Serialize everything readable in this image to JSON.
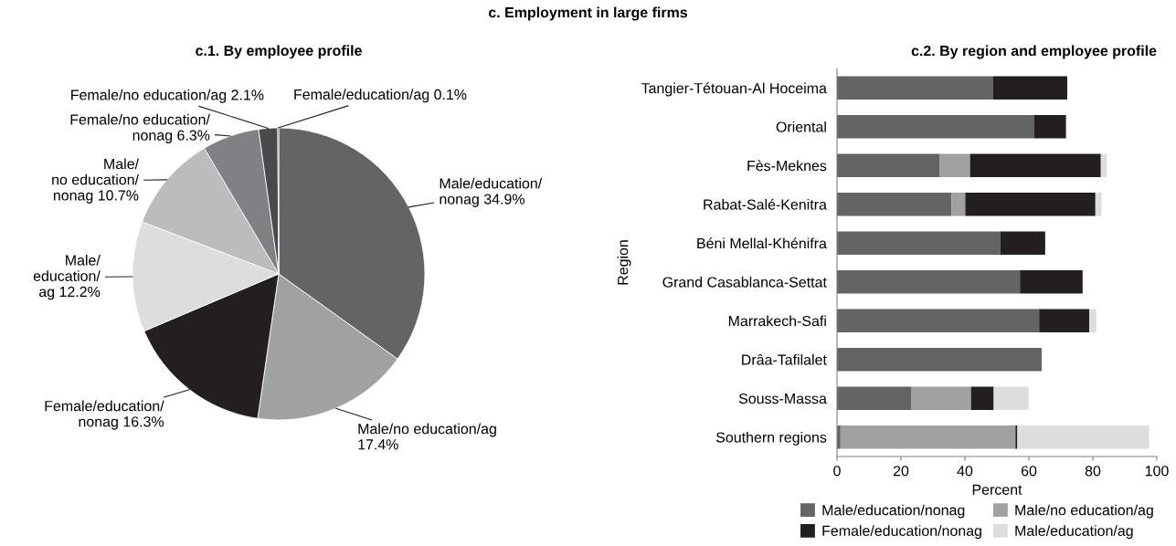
{
  "chart_data": [
    {
      "type": "pie",
      "title": "c.1. By employee profile",
      "annotations": [
        "c. Employment in large firms"
      ],
      "categories": [
        "Male/education/\nnonag 34.9%",
        "Male/no education/ag\n17.4%",
        "Female/education/\nnonag 16.3%",
        "Male/\neducation/\nag 12.2%",
        "Male/\nno education/\nnonag 10.7%",
        "Female/no education/\nnonag 6.3%",
        "Female/no education/ag 2.1%",
        "Female/education/ag 0.1%"
      ],
      "values": [
        34.9,
        17.4,
        16.3,
        12.2,
        10.7,
        6.3,
        2.1,
        0.1
      ],
      "colors": [
        "#636466",
        "#a0a1a3",
        "#231f20",
        "#dcdddf",
        "#bbbcbe",
        "#808184",
        "#4a4a4d",
        "#333333"
      ]
    },
    {
      "type": "bar",
      "orientation": "horizontal",
      "stacked": true,
      "title": "c.2. By region and employee profile",
      "xlabel": "Percent",
      "ylabel": "Region",
      "categories": [
        "Tangier-Tétouan-Al Hoceima",
        "Oriental",
        "Fès-Meknes",
        "Rabat-Salé-Kenitra",
        "Béni Mellal-Khénifra",
        "Grand Casablanca-Settat",
        "Marrakech-Safi",
        "Drâa-Tafilalet",
        "Souss-Massa",
        "Southern regions"
      ],
      "series": [
        {
          "name": "Male/education/nonag",
          "color": "#636466",
          "values": [
            48.7,
            61.7,
            32.0,
            35.8,
            51.1,
            57.2,
            63.2,
            64.0,
            23.3,
            1.1
          ]
        },
        {
          "name": "Male/no education/ag",
          "color": "#a0a1a3",
          "values": [
            0,
            0,
            9.6,
            4.3,
            0,
            0,
            0,
            0,
            18.6,
            54.7
          ]
        },
        {
          "name": "Female/education/nonag",
          "color": "#231f20",
          "values": [
            23.3,
            9.9,
            40.9,
            40.7,
            14.0,
            19.6,
            15.7,
            0,
            7.1,
            0.6
          ]
        },
        {
          "name": "Male/education/ag",
          "color": "#dcdddf",
          "values": [
            0,
            0,
            1.8,
            1.9,
            0,
            0,
            2.2,
            0,
            10.9,
            41.2
          ]
        }
      ],
      "xlim": [
        0,
        100
      ],
      "xticks": [
        0,
        20,
        40,
        60,
        80,
        100
      ],
      "grid": false,
      "legend": "bottom"
    }
  ]
}
